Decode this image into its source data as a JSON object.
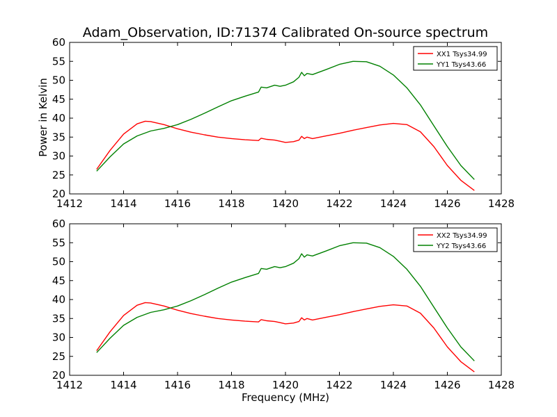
{
  "chart_data": [
    {
      "type": "line",
      "title": "Adam_Observation, ID:71374 Calibrated On-source spectrum",
      "xlabel": "",
      "ylabel": "Power in Kelvin",
      "xlim": [
        1412,
        1428
      ],
      "ylim": [
        20,
        60
      ],
      "xticks": [
        1412,
        1414,
        1416,
        1418,
        1420,
        1422,
        1424,
        1426,
        1428
      ],
      "yticks": [
        20,
        25,
        30,
        35,
        40,
        45,
        50,
        55,
        60
      ],
      "grid": false,
      "legend_position": "top-right",
      "series": [
        {
          "name": "XX1 Tsys34.99",
          "color": "#ff0000",
          "x": [
            1413.0,
            1413.5,
            1414.0,
            1414.5,
            1414.8,
            1415.0,
            1415.5,
            1416.0,
            1416.5,
            1417.0,
            1417.5,
            1418.0,
            1418.5,
            1419.0,
            1419.1,
            1419.3,
            1419.6,
            1419.8,
            1420.0,
            1420.3,
            1420.5,
            1420.6,
            1420.7,
            1420.8,
            1421.0,
            1421.5,
            1422.0,
            1422.5,
            1423.0,
            1423.5,
            1424.0,
            1424.5,
            1425.0,
            1425.5,
            1426.0,
            1426.5,
            1427.0
          ],
          "y": [
            26.5,
            31.5,
            35.8,
            38.5,
            39.2,
            39.1,
            38.3,
            37.2,
            36.3,
            35.6,
            35.0,
            34.6,
            34.3,
            34.1,
            34.7,
            34.4,
            34.2,
            33.9,
            33.6,
            33.8,
            34.2,
            35.2,
            34.6,
            35.0,
            34.6,
            35.3,
            36.0,
            36.8,
            37.5,
            38.2,
            38.6,
            38.3,
            36.4,
            32.5,
            27.5,
            23.6,
            20.9
          ]
        },
        {
          "name": "YY1 Tsys43.66",
          "color": "#008000",
          "x": [
            1413.0,
            1413.5,
            1414.0,
            1414.5,
            1415.0,
            1415.5,
            1416.0,
            1416.5,
            1417.0,
            1417.5,
            1418.0,
            1418.5,
            1419.0,
            1419.1,
            1419.3,
            1419.6,
            1419.8,
            1420.0,
            1420.3,
            1420.5,
            1420.6,
            1420.7,
            1420.8,
            1421.0,
            1421.5,
            1422.0,
            1422.5,
            1423.0,
            1423.5,
            1424.0,
            1424.5,
            1425.0,
            1425.5,
            1426.0,
            1426.5,
            1427.0
          ],
          "y": [
            26.0,
            29.8,
            33.2,
            35.3,
            36.6,
            37.3,
            38.3,
            39.7,
            41.3,
            43.0,
            44.6,
            45.8,
            46.9,
            48.2,
            48.0,
            48.7,
            48.4,
            48.7,
            49.6,
            50.8,
            52.1,
            51.2,
            51.8,
            51.5,
            52.8,
            54.2,
            55.0,
            54.9,
            53.7,
            51.4,
            48.0,
            43.5,
            38.0,
            32.5,
            27.5,
            23.8
          ]
        }
      ]
    },
    {
      "type": "line",
      "title": "",
      "xlabel": "Frequency (MHz)",
      "ylabel": "",
      "xlim": [
        1412,
        1428
      ],
      "ylim": [
        20,
        60
      ],
      "xticks": [
        1412,
        1414,
        1416,
        1418,
        1420,
        1422,
        1424,
        1426,
        1428
      ],
      "yticks": [
        20,
        25,
        30,
        35,
        40,
        45,
        50,
        55,
        60
      ],
      "grid": false,
      "legend_position": "top-right",
      "series": [
        {
          "name": "XX2 Tsys34.99",
          "color": "#ff0000",
          "x": [
            1413.0,
            1413.5,
            1414.0,
            1414.5,
            1414.8,
            1415.0,
            1415.5,
            1416.0,
            1416.5,
            1417.0,
            1417.5,
            1418.0,
            1418.5,
            1419.0,
            1419.1,
            1419.3,
            1419.6,
            1419.8,
            1420.0,
            1420.3,
            1420.5,
            1420.6,
            1420.7,
            1420.8,
            1421.0,
            1421.5,
            1422.0,
            1422.5,
            1423.0,
            1423.5,
            1424.0,
            1424.5,
            1425.0,
            1425.5,
            1426.0,
            1426.5,
            1427.0
          ],
          "y": [
            26.5,
            31.5,
            35.8,
            38.5,
            39.2,
            39.1,
            38.3,
            37.2,
            36.3,
            35.6,
            35.0,
            34.6,
            34.3,
            34.1,
            34.7,
            34.4,
            34.2,
            33.9,
            33.6,
            33.8,
            34.2,
            35.2,
            34.6,
            35.0,
            34.6,
            35.3,
            36.0,
            36.8,
            37.5,
            38.2,
            38.6,
            38.3,
            36.4,
            32.5,
            27.5,
            23.6,
            20.9
          ]
        },
        {
          "name": "YY2 Tsys43.66",
          "color": "#008000",
          "x": [
            1413.0,
            1413.5,
            1414.0,
            1414.5,
            1415.0,
            1415.5,
            1416.0,
            1416.5,
            1417.0,
            1417.5,
            1418.0,
            1418.5,
            1419.0,
            1419.1,
            1419.3,
            1419.6,
            1419.8,
            1420.0,
            1420.3,
            1420.5,
            1420.6,
            1420.7,
            1420.8,
            1421.0,
            1421.5,
            1422.0,
            1422.5,
            1423.0,
            1423.5,
            1424.0,
            1424.5,
            1425.0,
            1425.5,
            1426.0,
            1426.5,
            1427.0
          ],
          "y": [
            26.0,
            29.8,
            33.2,
            35.3,
            36.6,
            37.3,
            38.3,
            39.7,
            41.3,
            43.0,
            44.6,
            45.8,
            46.9,
            48.2,
            48.0,
            48.7,
            48.4,
            48.7,
            49.6,
            50.8,
            52.1,
            51.2,
            51.8,
            51.5,
            52.8,
            54.2,
            55.0,
            54.9,
            53.7,
            51.4,
            48.0,
            43.5,
            38.0,
            32.5,
            27.5,
            23.8
          ]
        }
      ]
    }
  ]
}
